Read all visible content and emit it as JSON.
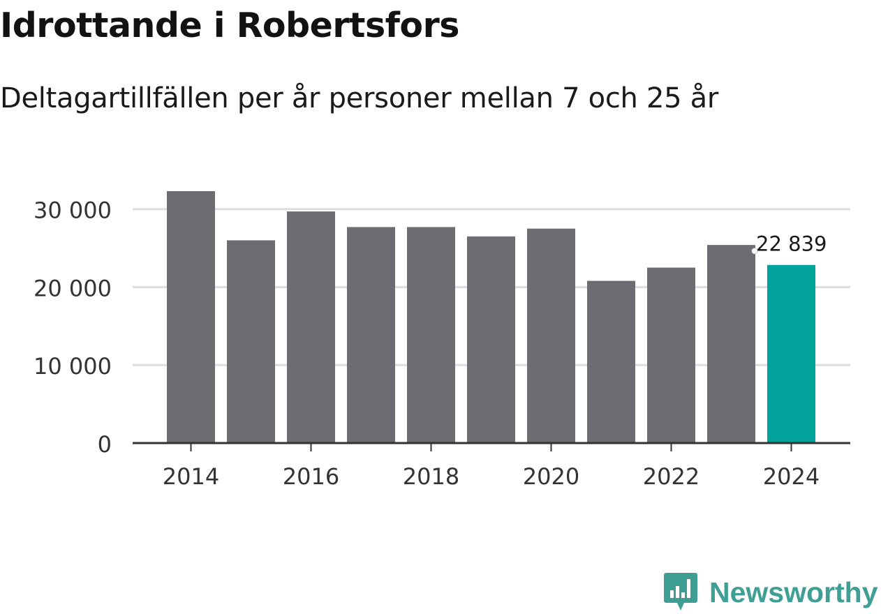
{
  "header": {
    "title": "Idrottande i Robertsfors",
    "subtitle": "Deltagartillfällen per år personer mellan 7 och 25 år"
  },
  "brand": {
    "name": "Newsworthy",
    "color": "#3f9f95"
  },
  "chart_data": {
    "type": "bar",
    "title": "Idrottande i Robertsfors",
    "subtitle": "Deltagartillfällen per år personer mellan 7 och 25 år",
    "xlabel": "",
    "ylabel": "",
    "categories": [
      "2014",
      "2015",
      "2016",
      "2017",
      "2018",
      "2019",
      "2020",
      "2021",
      "2022",
      "2023",
      "2024"
    ],
    "values": [
      32300,
      26000,
      29700,
      27700,
      27700,
      26500,
      27500,
      20800,
      22500,
      25400,
      22839
    ],
    "highlight_index": 10,
    "highlight_label": "22 839",
    "ylim": [
      0,
      32300
    ],
    "yticks": [
      0,
      10000,
      20000,
      30000
    ],
    "ytick_labels": [
      "0",
      "10 000",
      "20 000",
      "30 000"
    ],
    "xtick_labels": [
      "2014",
      "2016",
      "2018",
      "2020",
      "2022",
      "2024"
    ],
    "grid": true,
    "legend": "none",
    "colors": {
      "bar": "#6d6c72",
      "highlight": "#00a29a",
      "grid": "#dddddd",
      "axis": "#333333",
      "tick_label": "#333333"
    }
  }
}
